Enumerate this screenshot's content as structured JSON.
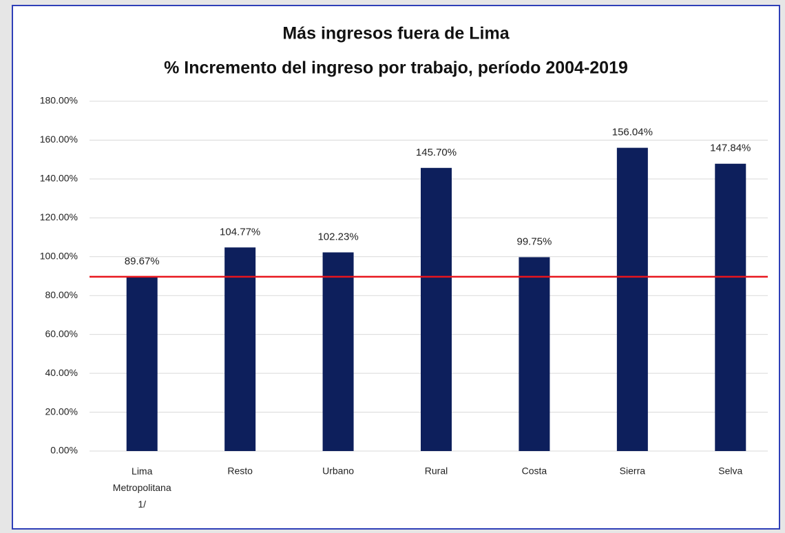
{
  "chart_data": {
    "type": "bar",
    "title": "Más ingresos fuera de Lima",
    "subtitle": "% Incremento del ingreso por trabajo, período 2004-2019",
    "categories": [
      "Lima Metropolitana 1/",
      "Resto",
      "Urbano",
      "Rural",
      "Costa",
      "Sierra",
      "Selva"
    ],
    "values": [
      89.67,
      104.77,
      102.23,
      145.7,
      99.75,
      156.04,
      147.84
    ],
    "value_labels": [
      "89.67%",
      "104.77%",
      "102.23%",
      "145.70%",
      "99.75%",
      "156.04%",
      "147.84%"
    ],
    "color": "#0d1f5c",
    "ylim": [
      0,
      180
    ],
    "yticks": [
      {
        "value": 0,
        "label": "0.00%"
      },
      {
        "value": 20,
        "label": "20.00%"
      },
      {
        "value": 40,
        "label": "40.00%"
      },
      {
        "value": 60,
        "label": "60.00%"
      },
      {
        "value": 80,
        "label": "80.00%"
      },
      {
        "value": 100,
        "label": "100.00%"
      },
      {
        "value": 120,
        "label": "120.00%"
      },
      {
        "value": 140,
        "label": "140.00%"
      },
      {
        "value": 160,
        "label": "160.00%"
      },
      {
        "value": 180,
        "label": "180.00%"
      }
    ],
    "grid": true,
    "reference_line": {
      "value": 89.67,
      "color": "#e8141c"
    }
  }
}
